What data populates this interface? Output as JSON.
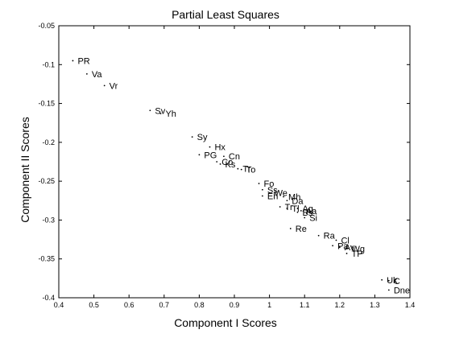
{
  "chart_data": {
    "type": "scatter",
    "title": "Partial Least Squares",
    "xlabel": "Component I  Scores",
    "ylabel": "Component II Scores",
    "xlim": [
      0.4,
      1.4
    ],
    "ylim": [
      -0.4,
      -0.05
    ],
    "xticks": [
      "0.4",
      "0.5",
      "0.6",
      "0.7",
      "0.8",
      "0.9",
      "1",
      "1.1",
      "1.2",
      "1.3",
      "1.4"
    ],
    "yticks": [
      "-0.05",
      "-0.1",
      "-0.15",
      "-0.2",
      "-0.25",
      "-0.3",
      "-0.35",
      "-0.4"
    ],
    "grid": false,
    "points": [
      {
        "label": "PR",
        "x": 0.44,
        "y": -0.095
      },
      {
        "label": "Va",
        "x": 0.48,
        "y": -0.112
      },
      {
        "label": "Vr",
        "x": 0.53,
        "y": -0.127
      },
      {
        "label": "Sv",
        "x": 0.66,
        "y": -0.159
      },
      {
        "label": "Yh",
        "x": 0.69,
        "y": -0.163
      },
      {
        "label": "Sy",
        "x": 0.78,
        "y": -0.193
      },
      {
        "label": "Hx",
        "x": 0.83,
        "y": -0.206
      },
      {
        "label": "PG",
        "x": 0.8,
        "y": -0.216
      },
      {
        "label": "Cn",
        "x": 0.87,
        "y": -0.218
      },
      {
        "label": "Co",
        "x": 0.85,
        "y": -0.225
      },
      {
        "label": "Ks",
        "x": 0.86,
        "y": -0.228
      },
      {
        "label": "Tr",
        "x": 0.91,
        "y": -0.234
      },
      {
        "label": "To",
        "x": 0.92,
        "y": -0.235
      },
      {
        "label": "Fo",
        "x": 0.97,
        "y": -0.253
      },
      {
        "label": "Ss",
        "x": 0.98,
        "y": -0.261
      },
      {
        "label": "We",
        "x": 1.0,
        "y": -0.265
      },
      {
        "label": "Mh",
        "x": 1.04,
        "y": -0.27
      },
      {
        "label": "Eh",
        "x": 0.98,
        "y": -0.269
      },
      {
        "label": "Da",
        "x": 1.05,
        "y": -0.275
      },
      {
        "label": "Tr",
        "x": 1.03,
        "y": -0.283
      },
      {
        "label": "Tl",
        "x": 1.05,
        "y": -0.285
      },
      {
        "label": "Ag",
        "x": 1.08,
        "y": -0.285
      },
      {
        "label": "Aa",
        "x": 1.09,
        "y": -0.288
      },
      {
        "label": "Bs",
        "x": 1.08,
        "y": -0.29
      },
      {
        "label": "Si",
        "x": 1.1,
        "y": -0.297
      },
      {
        "label": "Re",
        "x": 1.06,
        "y": -0.311
      },
      {
        "label": "Ra",
        "x": 1.14,
        "y": -0.32
      },
      {
        "label": "Cl",
        "x": 1.19,
        "y": -0.326
      },
      {
        "label": "Pa",
        "x": 1.18,
        "y": -0.333
      },
      {
        "label": "Av",
        "x": 1.2,
        "y": -0.335
      },
      {
        "label": "Wg",
        "x": 1.22,
        "y": -0.337
      },
      {
        "label": "TP",
        "x": 1.22,
        "y": -0.343
      },
      {
        "label": "Uk",
        "x": 1.32,
        "y": -0.377
      },
      {
        "label": "C",
        "x": 1.34,
        "y": -0.378
      },
      {
        "label": "Dne",
        "x": 1.34,
        "y": -0.39
      }
    ]
  }
}
